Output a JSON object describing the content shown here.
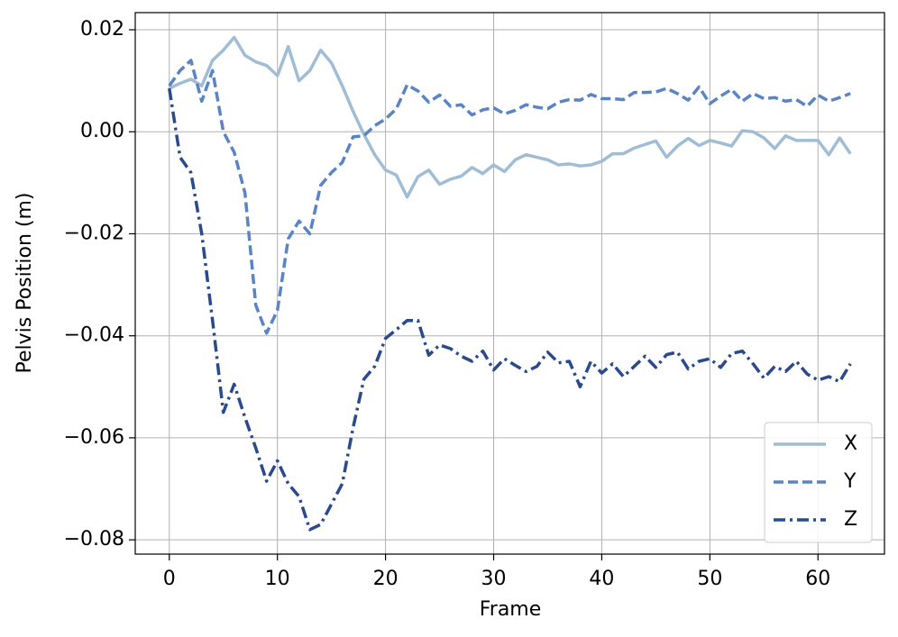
{
  "chart_data": {
    "type": "line",
    "xlabel": "Frame",
    "ylabel": "Pelvis Position (m)",
    "x": [
      0,
      1,
      2,
      3,
      4,
      5,
      6,
      7,
      8,
      9,
      10,
      11,
      12,
      13,
      14,
      15,
      16,
      17,
      18,
      19,
      20,
      21,
      22,
      23,
      24,
      25,
      26,
      27,
      28,
      29,
      30,
      31,
      32,
      33,
      34,
      35,
      36,
      37,
      38,
      39,
      40,
      41,
      42,
      43,
      44,
      45,
      46,
      47,
      48,
      49,
      50,
      51,
      52,
      53,
      54,
      55,
      56,
      57,
      58,
      59,
      60,
      61,
      62,
      63
    ],
    "series": [
      {
        "name": "X",
        "color": "#a0bdd6",
        "linestyle": "solid",
        "values": [
          0.0085,
          0.0095,
          0.0103,
          0.009,
          0.014,
          0.016,
          0.0185,
          0.015,
          0.0137,
          0.013,
          0.011,
          0.0167,
          0.01,
          0.012,
          0.016,
          0.0135,
          0.009,
          0.004,
          -0.0005,
          -0.0045,
          -0.0075,
          -0.0085,
          -0.0128,
          -0.0088,
          -0.0075,
          -0.0103,
          -0.0093,
          -0.0087,
          -0.007,
          -0.0082,
          -0.0065,
          -0.0078,
          -0.0055,
          -0.0045,
          -0.005,
          -0.0055,
          -0.0065,
          -0.0063,
          -0.0067,
          -0.0065,
          -0.0058,
          -0.0043,
          -0.0043,
          -0.0032,
          -0.0025,
          -0.0018,
          -0.005,
          -0.0028,
          -0.0013,
          -0.0027,
          -0.0017,
          -0.0022,
          -0.0028,
          0.0002,
          0.0,
          -0.0012,
          -0.0033,
          -0.0008,
          -0.0017,
          -0.0017,
          -0.0017,
          -0.0045,
          -0.0012,
          -0.0043
        ]
      },
      {
        "name": "Y",
        "color": "#5b84c4",
        "linestyle": "dashed",
        "values": [
          0.009,
          0.012,
          0.014,
          0.006,
          0.012,
          0.0,
          -0.004,
          -0.012,
          -0.034,
          -0.0395,
          -0.035,
          -0.021,
          -0.0175,
          -0.02,
          -0.0105,
          -0.008,
          -0.006,
          -0.001,
          -0.0008,
          0.0012,
          0.0025,
          0.0045,
          0.0092,
          0.008,
          0.0058,
          0.0072,
          0.005,
          0.0053,
          0.0033,
          0.0043,
          0.0047,
          0.0035,
          0.0042,
          0.0053,
          0.0048,
          0.0045,
          0.0058,
          0.0063,
          0.0062,
          0.0073,
          0.0065,
          0.0065,
          0.0063,
          0.0077,
          0.0077,
          0.0078,
          0.0085,
          0.0075,
          0.0062,
          0.0088,
          0.0055,
          0.007,
          0.0083,
          0.006,
          0.0075,
          0.0065,
          0.0067,
          0.006,
          0.0063,
          0.005,
          0.0072,
          0.006,
          0.0067,
          0.0075
        ]
      },
      {
        "name": "Z",
        "color": "#2a4a8c",
        "linestyle": "dashdot",
        "values": [
          0.0085,
          -0.005,
          -0.008,
          -0.02,
          -0.037,
          -0.055,
          -0.0495,
          -0.056,
          -0.062,
          -0.0685,
          -0.0645,
          -0.069,
          -0.0715,
          -0.078,
          -0.077,
          -0.073,
          -0.069,
          -0.058,
          -0.0485,
          -0.046,
          -0.0405,
          -0.0388,
          -0.037,
          -0.037,
          -0.0438,
          -0.0418,
          -0.0425,
          -0.044,
          -0.045,
          -0.043,
          -0.0467,
          -0.0445,
          -0.0458,
          -0.047,
          -0.046,
          -0.0432,
          -0.0453,
          -0.045,
          -0.05,
          -0.045,
          -0.0473,
          -0.0455,
          -0.048,
          -0.046,
          -0.044,
          -0.0462,
          -0.0437,
          -0.0432,
          -0.0465,
          -0.045,
          -0.0445,
          -0.0462,
          -0.0435,
          -0.043,
          -0.0455,
          -0.0483,
          -0.046,
          -0.047,
          -0.045,
          -0.0475,
          -0.0487,
          -0.048,
          -0.049,
          -0.0455
        ]
      }
    ],
    "xlim": [
      -3.15,
      66.15
    ],
    "ylim": [
      -0.0828,
      0.02336
    ],
    "xticks": [
      0,
      10,
      20,
      30,
      40,
      50,
      60
    ],
    "yticks": [
      {
        "value": -0.08,
        "label": "−0.08"
      },
      {
        "value": -0.06,
        "label": "−0.06"
      },
      {
        "value": -0.04,
        "label": "−0.04"
      },
      {
        "value": -0.02,
        "label": "−0.02"
      },
      {
        "value": 0,
        "label": "0.00"
      },
      {
        "value": 0.02,
        "label": "0.02"
      }
    ],
    "grid": true,
    "legend": "lower right"
  }
}
